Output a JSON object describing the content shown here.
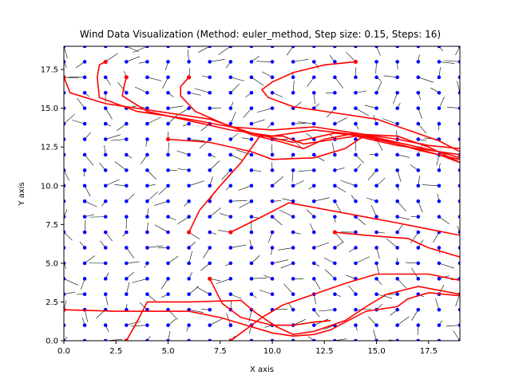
{
  "chart_data": {
    "type": "quiver-streamline",
    "title": "Wind Data Visualization (Method: euler_method, Step size: 0.15, Steps: 16)",
    "xlabel": "X axis",
    "ylabel": "Y axis",
    "xlim": [
      0,
      19
    ],
    "ylim": [
      0,
      19
    ],
    "xticks": [
      0,
      2.5,
      5,
      7.5,
      10,
      12.5,
      15,
      17.5
    ],
    "yticks": [
      0,
      2.5,
      5,
      7.5,
      10,
      12.5,
      15,
      17.5
    ],
    "xtick_labels": [
      "0.0",
      "2.5",
      "5.0",
      "7.5",
      "10.0",
      "12.5",
      "15.0",
      "17.5"
    ],
    "ytick_labels": [
      "0.0",
      "2.5",
      "5.0",
      "7.5",
      "10.0",
      "12.5",
      "15.0",
      "17.5"
    ],
    "grid_points": {
      "x": [
        0,
        19,
        1
      ],
      "y": [
        0,
        19,
        1
      ],
      "color": "#0000ff"
    },
    "colors": {
      "points": "#0000ff",
      "arrows": "#000000",
      "trajectories": "#ff0000"
    },
    "trajectories": [
      {
        "start": [
          2,
          18
        ],
        "points": [
          [
            2,
            18
          ],
          [
            1.7,
            17.8
          ],
          [
            1.6,
            17
          ],
          [
            1.7,
            15.7
          ],
          [
            3.5,
            14.8
          ],
          [
            6,
            14.3
          ],
          [
            8,
            13.8
          ],
          [
            10,
            13.6
          ],
          [
            12,
            13.8
          ],
          [
            14,
            13.4
          ],
          [
            16,
            12.8
          ],
          [
            18,
            12.2
          ],
          [
            19,
            11.8
          ]
        ]
      },
      {
        "start": [
          3,
          17
        ],
        "points": [
          [
            3,
            17
          ],
          [
            2.9,
            16.5
          ],
          [
            2.8,
            15.8
          ],
          [
            4,
            14.8
          ],
          [
            6,
            14.2
          ],
          [
            8,
            13.6
          ],
          [
            10,
            13.2
          ],
          [
            12,
            13.6
          ],
          [
            14,
            13.3
          ],
          [
            16,
            12.7
          ],
          [
            18,
            12
          ],
          [
            19,
            11.5
          ]
        ]
      },
      {
        "start": [
          6,
          17
        ],
        "points": [
          [
            6,
            17
          ],
          [
            5.6,
            16.4
          ],
          [
            5.6,
            15.8
          ],
          [
            6.3,
            14.8
          ],
          [
            7.5,
            14.1
          ],
          [
            9,
            13.3
          ],
          [
            10.5,
            12.8
          ],
          [
            11.5,
            12.4
          ],
          [
            12.5,
            13
          ],
          [
            14,
            13.4
          ],
          [
            16,
            13
          ],
          [
            17.5,
            12.6
          ],
          [
            19,
            12.4
          ]
        ]
      },
      {
        "start": [
          14,
          18
        ],
        "points": [
          [
            14,
            18
          ],
          [
            12.5,
            17.8
          ],
          [
            11,
            17.3
          ],
          [
            10,
            16.7
          ],
          [
            9.5,
            16.2
          ],
          [
            9.8,
            15.7
          ],
          [
            11,
            15.1
          ],
          [
            13,
            14.7
          ],
          [
            15,
            14.3
          ],
          [
            16.5,
            13.6
          ],
          [
            18,
            12.9
          ],
          [
            19,
            12.2
          ]
        ]
      },
      {
        "start": [
          5,
          13
        ],
        "points": [
          [
            5,
            13
          ],
          [
            7,
            12.8
          ],
          [
            9,
            12.2
          ],
          [
            10,
            11.7
          ],
          [
            12,
            11.8
          ],
          [
            13.5,
            12.4
          ],
          [
            14.5,
            13.3
          ],
          [
            16,
            13.2
          ],
          [
            17.5,
            12.5
          ],
          [
            19,
            11.5
          ]
        ]
      },
      {
        "start": [
          6,
          7
        ],
        "points": [
          [
            6,
            7
          ],
          [
            6.5,
            8.4
          ],
          [
            7.5,
            10
          ],
          [
            8.5,
            11.5
          ],
          [
            9.4,
            13.2
          ],
          [
            10.5,
            13.2
          ],
          [
            11.5,
            12.7
          ],
          [
            12.5,
            12.9
          ],
          [
            14,
            13.2
          ],
          [
            16,
            12.6
          ],
          [
            18,
            12.2
          ],
          [
            19,
            12
          ]
        ]
      },
      {
        "start": [
          8,
          7
        ],
        "points": [
          [
            8,
            7
          ],
          [
            9.5,
            8
          ],
          [
            10.8,
            8.9
          ],
          [
            12,
            8.6
          ],
          [
            14,
            8.1
          ],
          [
            16,
            7.6
          ],
          [
            17.5,
            7.2
          ],
          [
            19,
            6.8
          ]
        ]
      },
      {
        "start": [
          13,
          7
        ],
        "points": [
          [
            13,
            7
          ],
          [
            14.5,
            6.8
          ],
          [
            15.5,
            6.7
          ],
          [
            16.5,
            6.6
          ],
          [
            17.5,
            6
          ],
          [
            19,
            5.4
          ]
        ]
      },
      {
        "start": [
          7,
          4
        ],
        "points": [
          [
            7,
            4
          ],
          [
            7.6,
            2.4
          ],
          [
            8.5,
            1.5
          ],
          [
            10,
            1
          ],
          [
            11,
            1
          ],
          [
            12,
            1.2
          ],
          [
            12.8,
            1.3
          ]
        ]
      },
      {
        "start": [
          3,
          0
        ],
        "points": [
          [
            3,
            0
          ],
          [
            3.5,
            1.2
          ],
          [
            4,
            2.5
          ],
          [
            6,
            2.5
          ],
          [
            8.5,
            2.6
          ],
          [
            9.2,
            1.8
          ],
          [
            10.2,
            0.9
          ],
          [
            11,
            0.4
          ],
          [
            12,
            0.6
          ],
          [
            13.5,
            1.3
          ],
          [
            14.5,
            2.2
          ],
          [
            15.5,
            3
          ],
          [
            17,
            3.5
          ],
          [
            19,
            3
          ]
        ]
      },
      {
        "start": [
          0,
          2
        ],
        "points": [
          [
            0,
            2
          ],
          [
            2.5,
            1.9
          ],
          [
            6,
            1.9
          ],
          [
            7.5,
            1.5
          ],
          [
            8.5,
            1.1
          ],
          [
            10,
            0.5
          ],
          [
            11,
            0.3
          ],
          [
            12,
            0.4
          ],
          [
            12.8,
            0.7
          ],
          [
            13.5,
            1.2
          ],
          [
            14.5,
            1.9
          ],
          [
            16,
            2.2
          ],
          [
            16.5,
            2.7
          ],
          [
            17.5,
            3.1
          ],
          [
            19,
            2.9
          ]
        ]
      },
      {
        "start": [
          8,
          0
        ],
        "points": [
          [
            8,
            0
          ],
          [
            8.5,
            0.5
          ],
          [
            9.5,
            1.5
          ],
          [
            10.5,
            2.3
          ],
          [
            12,
            3
          ],
          [
            13.5,
            3.7
          ],
          [
            15,
            4.3
          ],
          [
            17.5,
            4.3
          ],
          [
            19,
            3.9
          ]
        ]
      },
      {
        "start": [
          0,
          17
        ],
        "points": [
          [
            0,
            17
          ],
          [
            0.3,
            16
          ],
          [
            2,
            15.3
          ],
          [
            4.5,
            14.8
          ],
          [
            7,
            14.3
          ],
          [
            9,
            13.4
          ],
          [
            11,
            12.8
          ],
          [
            13,
            13.4
          ],
          [
            15,
            13.1
          ],
          [
            17,
            12.3
          ],
          [
            19,
            11.7
          ]
        ]
      }
    ]
  }
}
